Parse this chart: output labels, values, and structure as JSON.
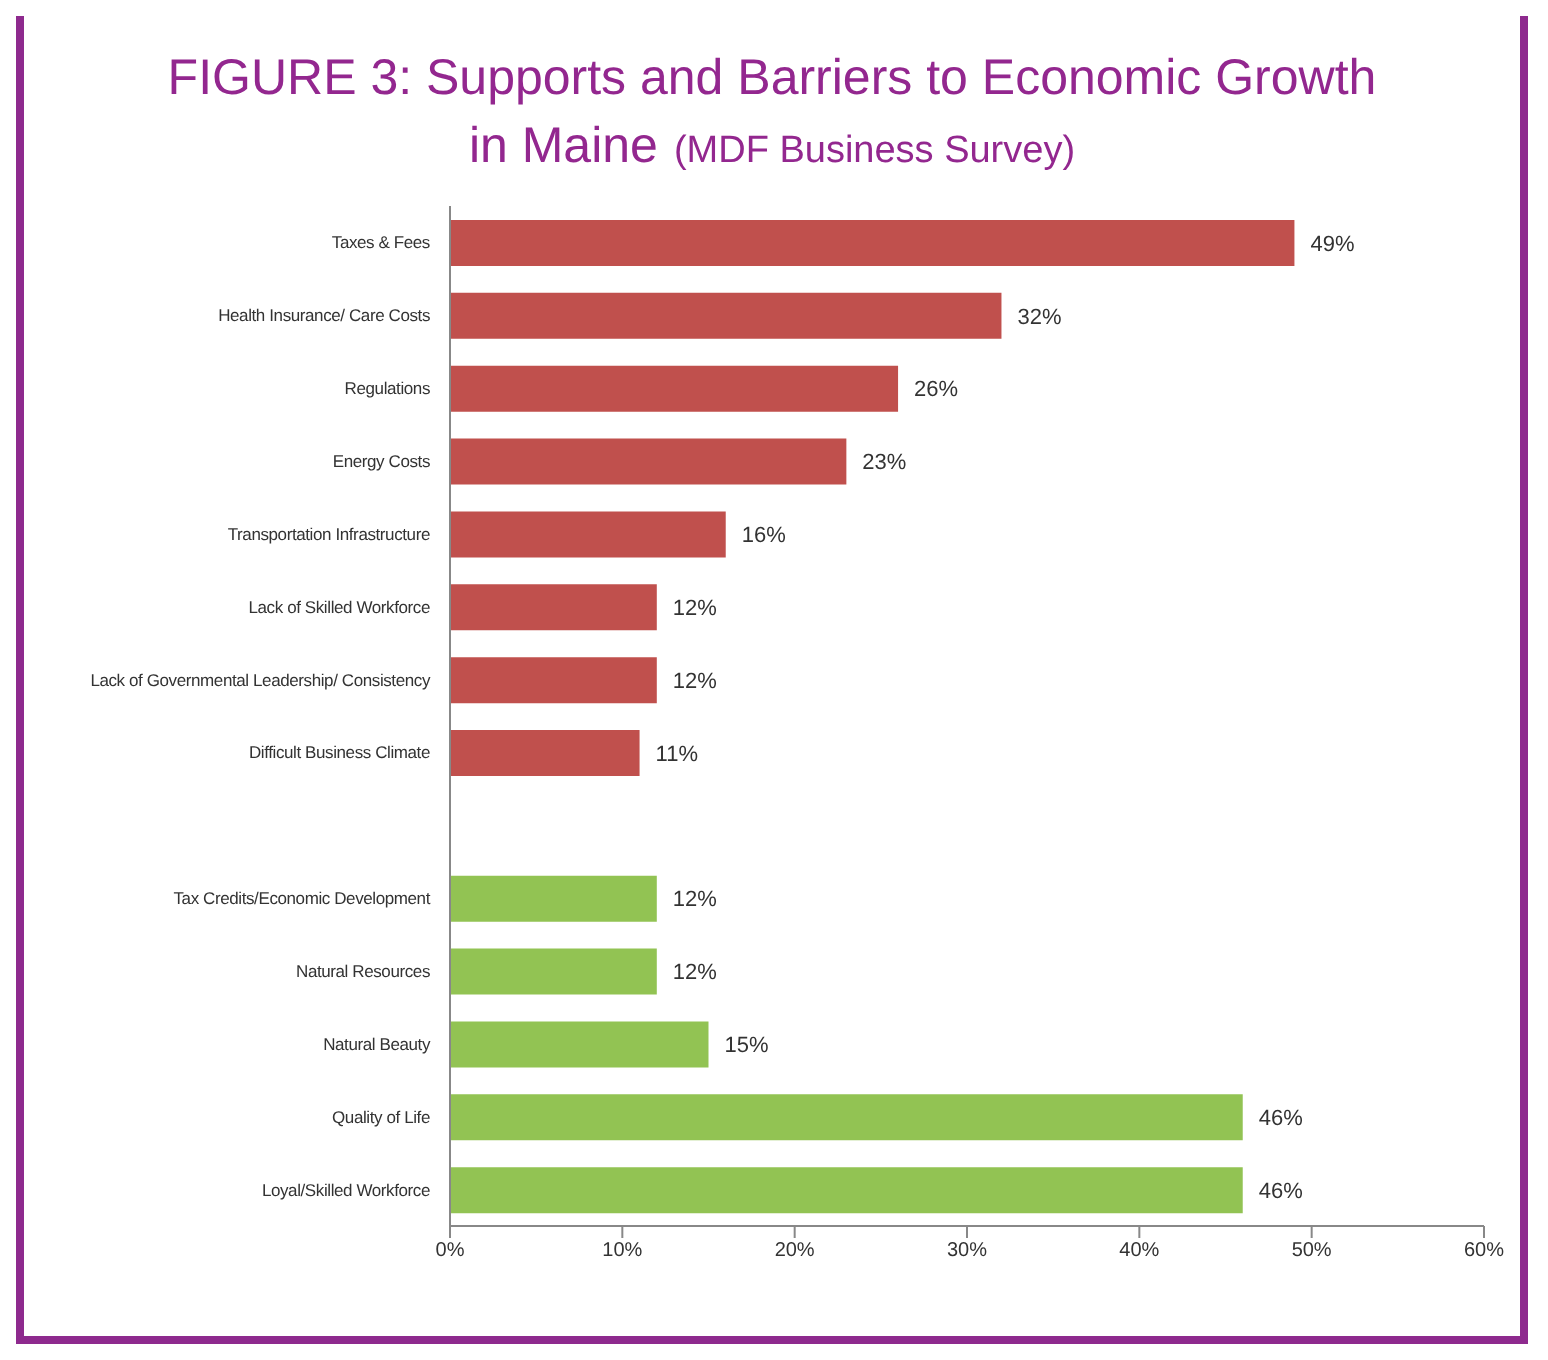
{
  "chart_data": {
    "type": "bar",
    "orientation": "horizontal",
    "title": "FIGURE 3: Supports and Barriers to Economic Growth in Maine",
    "subtitle": "(MDF Business Survey)",
    "categories": [
      "Taxes & Fees",
      "Health Insurance/ Care Costs",
      "Regulations",
      "Energy Costs",
      "Transportation Infrastructure",
      "Lack of Skilled Workforce",
      "Lack of Governmental Leadership/ Consistency",
      "Difficult Business Climate",
      null,
      "Tax Credits/Economic Development",
      "Natural Resources",
      "Natural Beauty",
      "Quality of Life",
      "Loyal/Skilled Workforce"
    ],
    "values": [
      49,
      32,
      26,
      23,
      16,
      12,
      12,
      11,
      null,
      12,
      12,
      15,
      46,
      46
    ],
    "colors": [
      "#c0504d",
      "#c0504d",
      "#c0504d",
      "#c0504d",
      "#c0504d",
      "#c0504d",
      "#c0504d",
      "#c0504d",
      "#c0504d",
      "#92c353",
      "#92c353",
      "#92c353",
      "#92c353",
      "#92c353"
    ],
    "value_labels": [
      "49%",
      "32%",
      "26%",
      "23%",
      "16%",
      "12%",
      "12%",
      "11%",
      null,
      "12%",
      "12%",
      "15%",
      "46%",
      "46%"
    ],
    "xlim": [
      0,
      60
    ],
    "xticks": [
      {
        "value": 0,
        "label": "0%"
      },
      {
        "value": 10,
        "label": "10%"
      },
      {
        "value": 20,
        "label": "20%"
      },
      {
        "value": 30,
        "label": "30%"
      },
      {
        "value": 40,
        "label": "40%"
      },
      {
        "value": 50,
        "label": "50%"
      },
      {
        "value": 60,
        "label": "60%"
      }
    ],
    "grid": false,
    "legend": false
  }
}
